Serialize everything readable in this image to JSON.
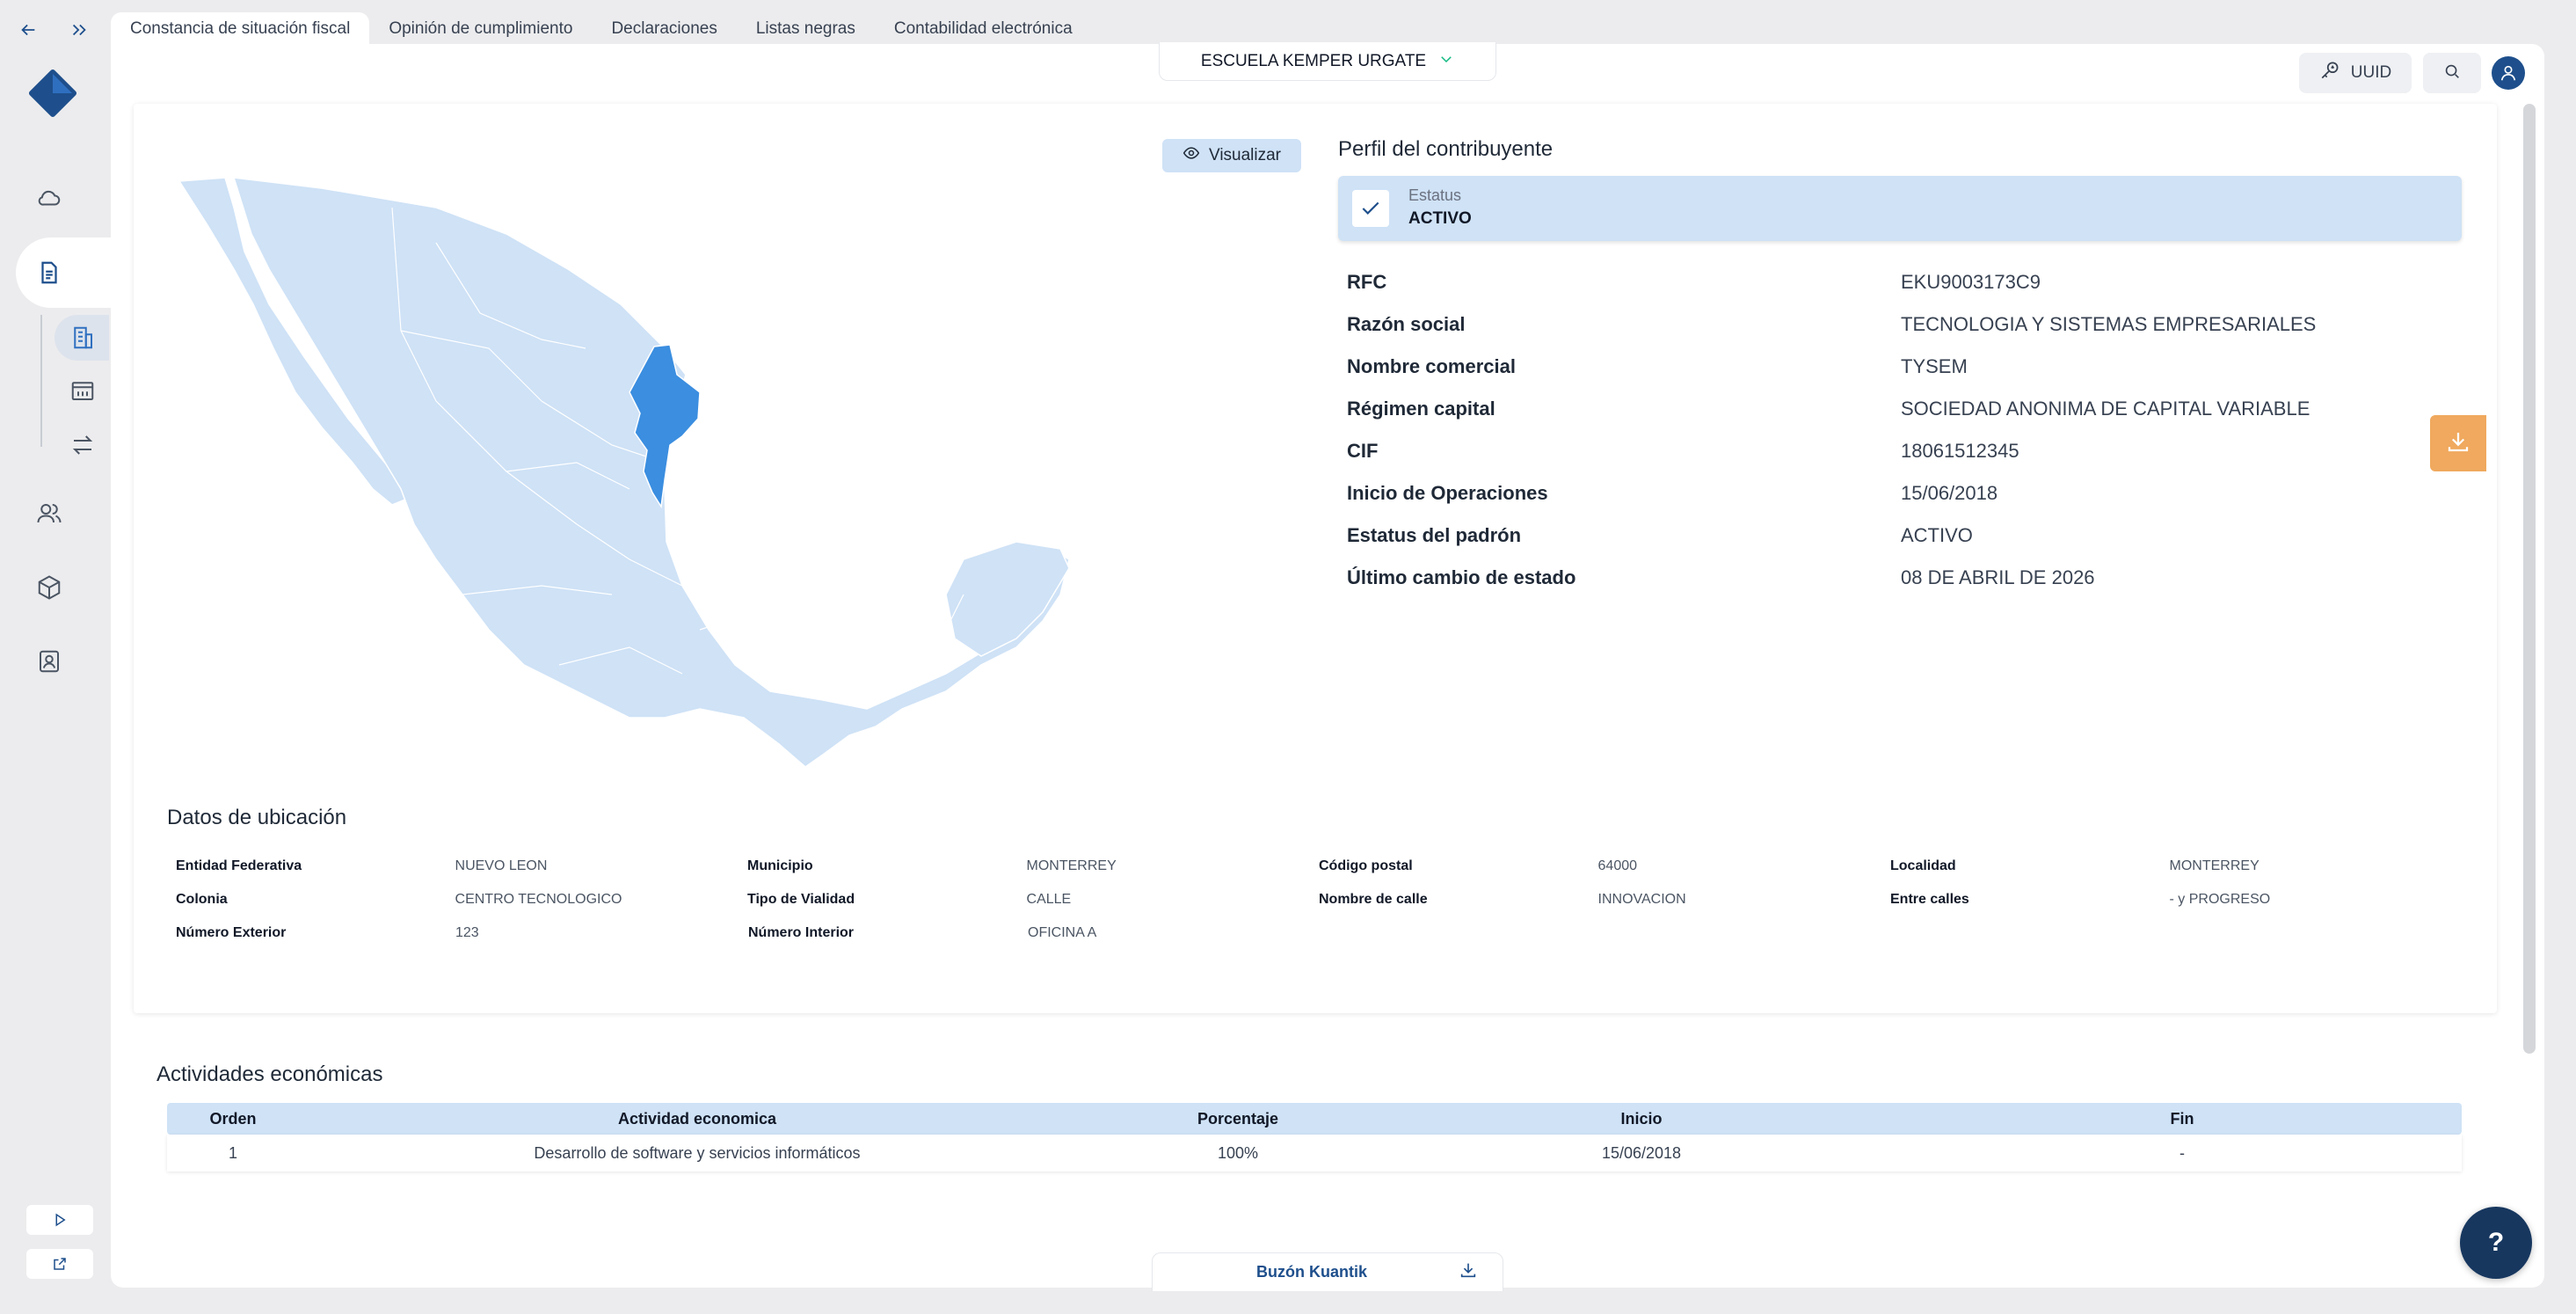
{
  "tabs": [
    {
      "label": "Constancia de situación fiscal"
    },
    {
      "label": "Opinión de cumplimiento"
    },
    {
      "label": "Declaraciones"
    },
    {
      "label": "Listas negras"
    },
    {
      "label": "Contabilidad electrónica"
    }
  ],
  "header": {
    "company": "ESCUELA KEMPER URGATE",
    "uuid_label": "UUID"
  },
  "map_action": {
    "label": "Visualizar"
  },
  "profile": {
    "title": "Perfil del contribuyente",
    "status_label": "Estatus",
    "status_value": "ACTIVO",
    "rows": [
      {
        "key": "RFC",
        "value": "EKU9003173C9"
      },
      {
        "key": "Razón social",
        "value": "TECNOLOGIA Y SISTEMAS EMPRESARIALES"
      },
      {
        "key": "Nombre comercial",
        "value": "TYSEM"
      },
      {
        "key": "Régimen capital",
        "value": "SOCIEDAD ANONIMA DE CAPITAL VARIABLE"
      },
      {
        "key": "CIF",
        "value": "18061512345"
      },
      {
        "key": "Inicio de Operaciones",
        "value": "15/06/2018"
      },
      {
        "key": "Estatus del padrón",
        "value": "ACTIVO"
      },
      {
        "key": "Último cambio de estado",
        "value": "08 DE ABRIL DE 2026"
      }
    ]
  },
  "ubicacion": {
    "title": "Datos de ubicación",
    "rows": [
      [
        {
          "key": "Entidad Federativa",
          "value": "NUEVO LEON"
        },
        {
          "key": "Municipio",
          "value": "MONTERREY"
        },
        {
          "key": "Código postal",
          "value": "64000"
        },
        {
          "key": "Localidad",
          "value": "MONTERREY"
        }
      ],
      [
        {
          "key": "Colonia",
          "value": "CENTRO TECNOLOGICO"
        },
        {
          "key": "Tipo de Vialidad",
          "value": "CALLE"
        },
        {
          "key": "Nombre de calle",
          "value": "INNOVACION"
        },
        {
          "key": "Entre calles",
          "value": "- y PROGRESO"
        }
      ],
      [
        {
          "key": "Número Exterior",
          "value": "123"
        },
        {
          "key": "Número Interior",
          "value": "OFICINA A"
        }
      ]
    ]
  },
  "actividades": {
    "title": "Actividades económicas",
    "columns": [
      "Orden",
      "Actividad economica",
      "Porcentaje",
      "Inicio",
      "Fin"
    ],
    "rows": [
      [
        "1",
        "Desarrollo de software y servicios informáticos",
        "100%",
        "15/06/2018",
        "-"
      ]
    ]
  },
  "buzon": {
    "label": "Buzón Kuantik"
  },
  "help": {
    "label": "?"
  },
  "colors": {
    "primary": "#1e4f8c",
    "light_blue": "#cfe2f6",
    "map_fill": "#cfe2f6",
    "map_highlight": "#3b8ee0",
    "download_orange": "#f0a95e"
  }
}
